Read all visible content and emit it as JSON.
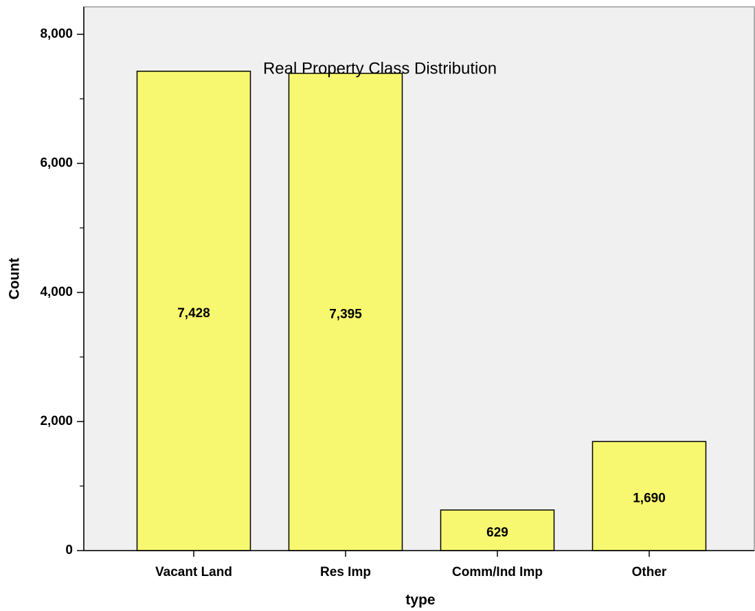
{
  "chart_data": {
    "type": "bar",
    "title": "Real Property Class Distribution",
    "x_label": "type",
    "y_label": "Count",
    "categories": [
      "Vacant Land",
      "Res Imp",
      "Comm/Ind Imp",
      "Other"
    ],
    "values": [
      7428,
      7395,
      629,
      1690
    ],
    "value_labels": [
      "7,428",
      "7,395",
      "629",
      "1,690"
    ],
    "color": "#f8f870",
    "ylim": [
      0,
      8425
    ],
    "yticks": [
      0,
      {
        "value": 2000,
        "label": "2,000"
      },
      {
        "value": 4000,
        "label": "4,000"
      },
      {
        "value": 6000,
        "label": "6,000"
      },
      {
        "value": 8000,
        "label": "8,000"
      }
    ],
    "yminor_ticks": [
      1000,
      3000,
      5000,
      7000
    ],
    "grid": false
  }
}
